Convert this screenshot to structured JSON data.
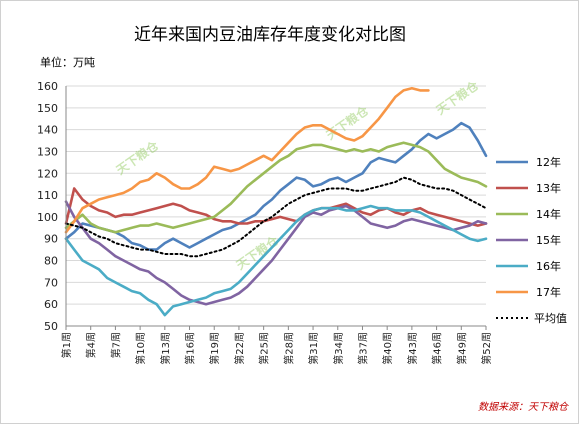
{
  "chart_data": {
    "type": "line",
    "title": "近年来国内豆油库存年度变化对比图",
    "unit_label": "单位：万吨",
    "source": "数据来源：天下粮仓",
    "watermark": "天下粮仓",
    "ylim": [
      50,
      160
    ],
    "yticks": [
      50,
      60,
      70,
      80,
      90,
      100,
      110,
      120,
      130,
      140,
      150,
      160
    ],
    "x": [
      1,
      2,
      3,
      4,
      5,
      6,
      7,
      8,
      9,
      10,
      11,
      12,
      13,
      14,
      15,
      16,
      17,
      18,
      19,
      20,
      21,
      22,
      23,
      24,
      25,
      26,
      27,
      28,
      29,
      30,
      31,
      32,
      33,
      34,
      35,
      36,
      37,
      38,
      39,
      40,
      41,
      42,
      43,
      44,
      45,
      46,
      47,
      48,
      49,
      50,
      51,
      52
    ],
    "xtick_labels": [
      "第1周",
      "第4周",
      "第7周",
      "第10周",
      "第13周",
      "第16周",
      "第19周",
      "第22周",
      "第25周",
      "第28周",
      "第31周",
      "第34周",
      "第37周",
      "第40周",
      "第43周",
      "第46周",
      "第49周",
      "第52周"
    ],
    "xtick_positions": [
      1,
      4,
      7,
      10,
      13,
      16,
      19,
      22,
      25,
      28,
      31,
      34,
      37,
      40,
      43,
      46,
      49,
      52
    ],
    "legend_position": "right",
    "series": [
      {
        "name": "12年",
        "color": "#4f81bd",
        "values": [
          90,
          93,
          97,
          96,
          95,
          94,
          93,
          91,
          88,
          87,
          85,
          85,
          88,
          90,
          88,
          86,
          88,
          90,
          92,
          94,
          95,
          97,
          99,
          101,
          105,
          108,
          112,
          115,
          118,
          117,
          114,
          115,
          117,
          118,
          116,
          118,
          120,
          125,
          127,
          126,
          125,
          128,
          131,
          135,
          138,
          136,
          138,
          140,
          143,
          141,
          135,
          128
        ]
      },
      {
        "name": "13年",
        "color": "#c0504d",
        "values": [
          97,
          113,
          108,
          105,
          103,
          102,
          100,
          101,
          101,
          102,
          103,
          104,
          105,
          106,
          105,
          103,
          102,
          101,
          99,
          98,
          98,
          97,
          97,
          98,
          98,
          99,
          100,
          99,
          98,
          101,
          103,
          104,
          104,
          105,
          106,
          104,
          102,
          101,
          103,
          104,
          102,
          101,
          103,
          104,
          102,
          101,
          100,
          99,
          98,
          97,
          96,
          97
        ]
      },
      {
        "name": "14年",
        "color": "#9bbb59",
        "values": [
          95,
          98,
          101,
          97,
          95,
          94,
          93,
          94,
          95,
          96,
          96,
          97,
          96,
          95,
          96,
          97,
          98,
          99,
          100,
          103,
          106,
          110,
          114,
          117,
          120,
          123,
          126,
          128,
          131,
          132,
          133,
          133,
          132,
          131,
          130,
          131,
          130,
          131,
          130,
          132,
          133,
          134,
          133,
          132,
          130,
          126,
          122,
          120,
          118,
          117,
          116,
          114
        ]
      },
      {
        "name": "15年",
        "color": "#8064a2",
        "values": [
          107,
          100,
          95,
          90,
          88,
          85,
          82,
          80,
          78,
          76,
          75,
          72,
          70,
          67,
          64,
          62,
          61,
          60,
          61,
          62,
          63,
          65,
          68,
          72,
          76,
          80,
          85,
          90,
          95,
          100,
          102,
          101,
          103,
          104,
          105,
          103,
          100,
          97,
          96,
          95,
          96,
          98,
          99,
          98,
          97,
          96,
          95,
          94,
          95,
          96,
          98,
          97
        ]
      },
      {
        "name": "16年",
        "color": "#4bacc6",
        "values": [
          90,
          85,
          80,
          78,
          76,
          72,
          70,
          68,
          66,
          65,
          62,
          60,
          55,
          59,
          60,
          61,
          62,
          63,
          65,
          66,
          67,
          70,
          74,
          78,
          82,
          86,
          90,
          94,
          98,
          101,
          103,
          104,
          104,
          104,
          103,
          103,
          104,
          105,
          104,
          104,
          103,
          103,
          103,
          102,
          100,
          98,
          96,
          94,
          92,
          90,
          89,
          90
        ]
      },
      {
        "name": "17年",
        "color": "#f79646",
        "values": [
          93,
          98,
          104,
          106,
          108,
          109,
          110,
          111,
          113,
          116,
          117,
          120,
          118,
          115,
          113,
          113,
          115,
          118,
          123,
          122,
          121,
          122,
          124,
          126,
          128,
          126,
          130,
          134,
          138,
          141,
          142,
          142,
          140,
          138,
          136,
          135,
          137,
          141,
          145,
          150,
          155,
          158,
          159,
          158,
          158,
          null,
          null,
          null,
          null,
          null,
          null,
          null
        ]
      },
      {
        "name": "平均值",
        "color": "#000000",
        "dashed": true,
        "values": [
          97,
          96,
          95,
          93,
          91,
          90,
          88,
          87,
          86,
          85,
          85,
          84,
          83,
          83,
          83,
          82,
          82,
          83,
          84,
          85,
          87,
          89,
          92,
          95,
          98,
          100,
          103,
          106,
          108,
          110,
          111,
          112,
          113,
          113,
          113,
          112,
          112,
          113,
          114,
          115,
          116,
          118,
          117,
          115,
          114,
          113,
          113,
          112,
          110,
          108,
          106,
          104
        ]
      }
    ]
  }
}
